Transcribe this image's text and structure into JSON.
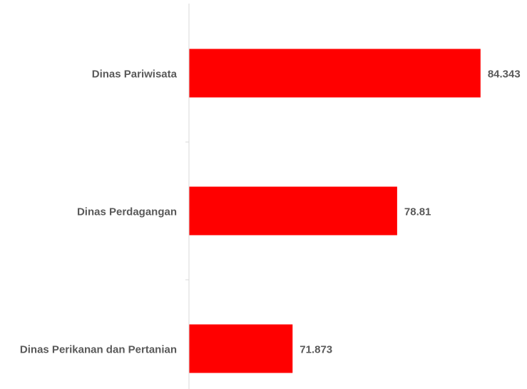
{
  "chart_data": {
    "type": "barh",
    "categories": [
      "Dinas Pariwisata",
      "Dinas Perdagangan",
      "Dinas Perikanan dan Pertanian"
    ],
    "values": [
      84.343,
      78.81,
      71.873
    ],
    "color": "#ff0000",
    "xlim": [
      65,
      87
    ]
  }
}
